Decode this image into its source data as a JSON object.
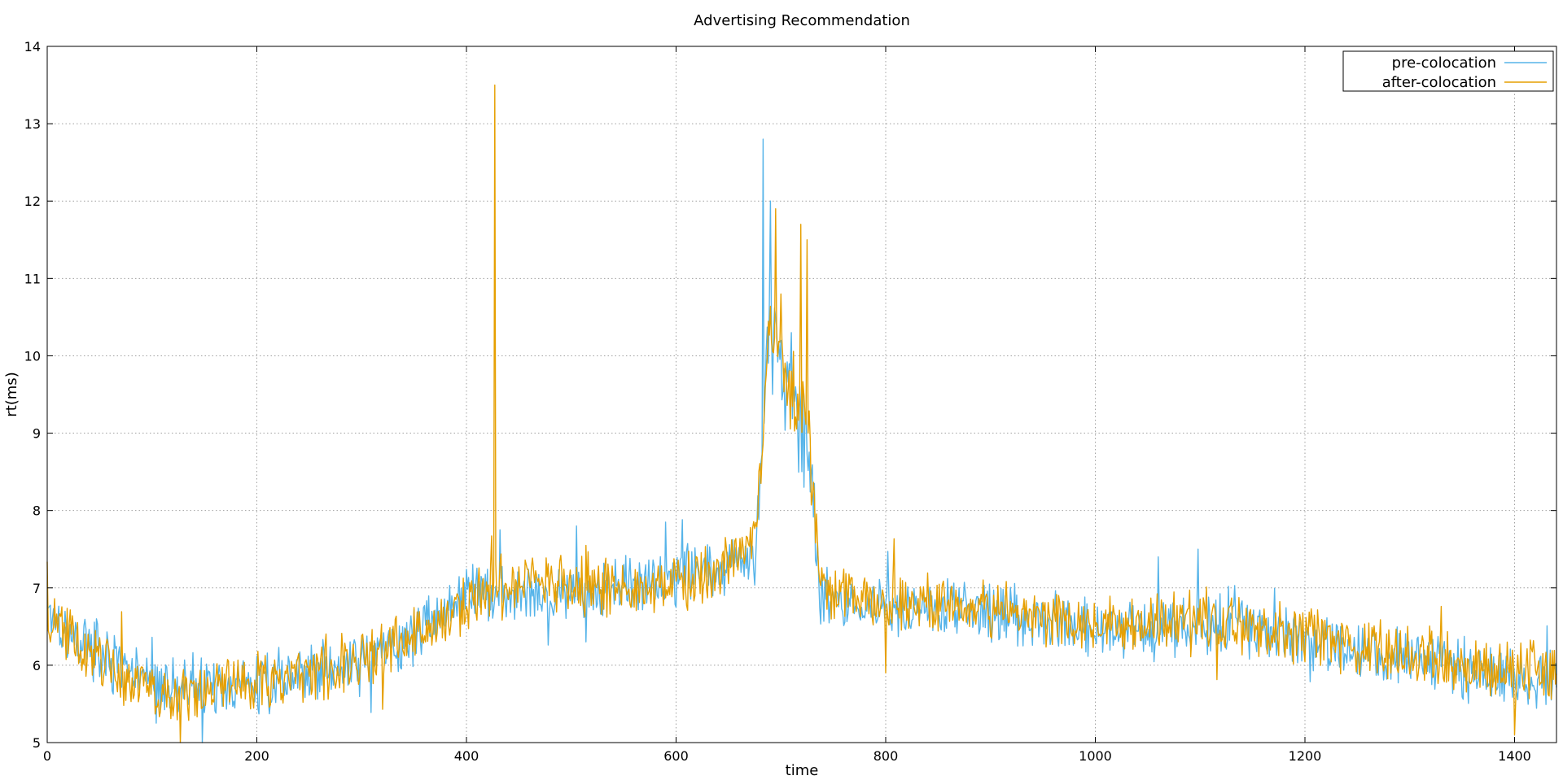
{
  "chart_data": {
    "type": "line",
    "title": "Advertising Recommendation",
    "xlabel": "time",
    "ylabel": "rt(ms)",
    "xlim": [
      0,
      1440
    ],
    "ylim": [
      5,
      14
    ],
    "xticks": [
      0,
      200,
      400,
      600,
      800,
      1000,
      1200,
      1400
    ],
    "yticks": [
      5,
      6,
      7,
      8,
      9,
      10,
      11,
      12,
      13,
      14
    ],
    "grid": true,
    "legend_position": "top-right",
    "series": [
      {
        "name": "pre-colocation",
        "color": "#56b4e9",
        "keypoints": [
          [
            0,
            6.8
          ],
          [
            20,
            6.4
          ],
          [
            40,
            6.25
          ],
          [
            60,
            6.0
          ],
          [
            80,
            5.85
          ],
          [
            100,
            5.75
          ],
          [
            120,
            5.7
          ],
          [
            150,
            5.75
          ],
          [
            180,
            5.7
          ],
          [
            200,
            5.75
          ],
          [
            230,
            5.85
          ],
          [
            260,
            5.95
          ],
          [
            300,
            6.05
          ],
          [
            330,
            6.2
          ],
          [
            360,
            6.5
          ],
          [
            380,
            6.8
          ],
          [
            400,
            6.95
          ],
          [
            430,
            6.9
          ],
          [
            460,
            6.9
          ],
          [
            500,
            6.95
          ],
          [
            540,
            7.0
          ],
          [
            580,
            7.05
          ],
          [
            620,
            7.2
          ],
          [
            660,
            7.35
          ],
          [
            675,
            7.4
          ],
          [
            682,
            8.8
          ],
          [
            688,
            10.4
          ],
          [
            700,
            9.7
          ],
          [
            715,
            9.2
          ],
          [
            725,
            9.0
          ],
          [
            732,
            7.8
          ],
          [
            738,
            6.9
          ],
          [
            760,
            6.85
          ],
          [
            800,
            6.75
          ],
          [
            850,
            6.75
          ],
          [
            900,
            6.7
          ],
          [
            950,
            6.55
          ],
          [
            1000,
            6.45
          ],
          [
            1050,
            6.5
          ],
          [
            1100,
            6.55
          ],
          [
            1150,
            6.45
          ],
          [
            1200,
            6.35
          ],
          [
            1250,
            6.2
          ],
          [
            1300,
            6.1
          ],
          [
            1350,
            5.95
          ],
          [
            1400,
            5.85
          ],
          [
            1440,
            5.8
          ]
        ],
        "spikes": [
          [
            683,
            12.8
          ],
          [
            690,
            12.0
          ],
          [
            700,
            10.2
          ],
          [
            710,
            10.3
          ],
          [
            722,
            8.3
          ],
          [
            1098,
            7.5
          ],
          [
            1060,
            7.4
          ],
          [
            505,
            7.8
          ],
          [
            590,
            7.85
          ]
        ]
      },
      {
        "name": "after-colocation",
        "color": "#e69f00",
        "keypoints": [
          [
            0,
            6.7
          ],
          [
            20,
            6.35
          ],
          [
            40,
            6.2
          ],
          [
            60,
            6.0
          ],
          [
            80,
            5.8
          ],
          [
            100,
            5.7
          ],
          [
            120,
            5.65
          ],
          [
            150,
            5.7
          ],
          [
            180,
            5.75
          ],
          [
            200,
            5.8
          ],
          [
            230,
            5.8
          ],
          [
            260,
            5.9
          ],
          [
            300,
            6.05
          ],
          [
            330,
            6.2
          ],
          [
            360,
            6.45
          ],
          [
            380,
            6.65
          ],
          [
            400,
            6.85
          ],
          [
            430,
            7.0
          ],
          [
            460,
            7.05
          ],
          [
            500,
            7.0
          ],
          [
            540,
            7.0
          ],
          [
            580,
            7.0
          ],
          [
            620,
            7.15
          ],
          [
            660,
            7.4
          ],
          [
            675,
            7.5
          ],
          [
            682,
            8.8
          ],
          [
            688,
            10.6
          ],
          [
            700,
            10.0
          ],
          [
            715,
            9.5
          ],
          [
            725,
            9.4
          ],
          [
            732,
            8.0
          ],
          [
            738,
            7.0
          ],
          [
            760,
            6.9
          ],
          [
            800,
            6.8
          ],
          [
            850,
            6.8
          ],
          [
            900,
            6.75
          ],
          [
            950,
            6.6
          ],
          [
            1000,
            6.55
          ],
          [
            1050,
            6.55
          ],
          [
            1100,
            6.6
          ],
          [
            1150,
            6.45
          ],
          [
            1200,
            6.4
          ],
          [
            1250,
            6.25
          ],
          [
            1300,
            6.15
          ],
          [
            1350,
            6.0
          ],
          [
            1400,
            5.95
          ],
          [
            1440,
            5.95
          ]
        ],
        "spikes": [
          [
            427,
            13.5
          ],
          [
            695,
            11.9
          ],
          [
            719,
            11.7
          ],
          [
            725,
            11.5
          ],
          [
            700,
            10.8
          ],
          [
            710,
            9.8
          ],
          [
            800,
            5.9
          ],
          [
            1400,
            5.1
          ]
        ]
      }
    ]
  }
}
